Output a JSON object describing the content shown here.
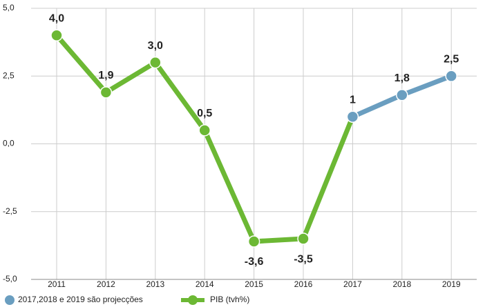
{
  "chart_data": {
    "type": "line",
    "categories": [
      "2011",
      "2012",
      "2013",
      "2014",
      "2015",
      "2016",
      "2017",
      "2018",
      "2019"
    ],
    "series": [
      {
        "name": "PIB (tvh%)",
        "color": "#6cb834",
        "values": [
          4.0,
          1.9,
          3.0,
          0.5,
          -3.6,
          -3.5,
          1,
          null,
          null
        ],
        "value_labels": [
          "4,0",
          "1,9",
          "3,0",
          "0,5",
          "-3,6",
          "-3,5",
          null,
          null,
          null
        ]
      },
      {
        "name": "2017,2018 e 2019 são projecções",
        "color": "#6a9ec0",
        "values": [
          null,
          null,
          null,
          null,
          null,
          null,
          1,
          1.8,
          2.5
        ],
        "value_labels": [
          null,
          null,
          null,
          null,
          null,
          null,
          "1",
          "1,8",
          "2,5"
        ]
      }
    ],
    "ylim": [
      -5,
      5
    ],
    "yticks": [
      {
        "value": 5,
        "label": "5,0"
      },
      {
        "value": 2.5,
        "label": "2,5"
      },
      {
        "value": 0,
        "label": "0,0"
      },
      {
        "value": -2.5,
        "label": "-2,5"
      },
      {
        "value": -5,
        "label": "-5,0"
      }
    ],
    "grid": true
  }
}
